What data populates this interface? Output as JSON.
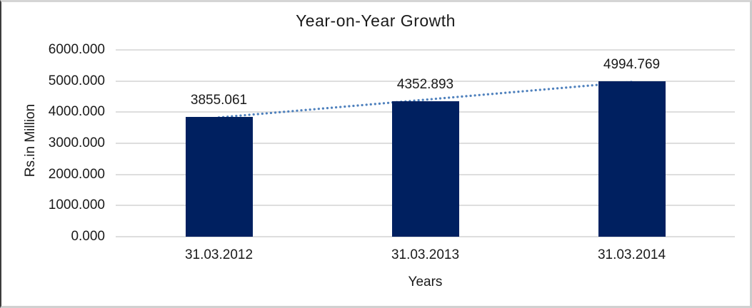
{
  "chart_data": {
    "type": "bar",
    "title": "Year-on-Year Growth",
    "xlabel": "Years",
    "ylabel": "Rs.in Million",
    "categories": [
      "31.03.2012",
      "31.03.2013",
      "31.03.2014"
    ],
    "values": [
      3855.061,
      4352.893,
      4994.769
    ],
    "data_labels": [
      "3855.061",
      "4352.893",
      "4994.769"
    ],
    "y_ticks": [
      "0.000",
      "1000.000",
      "2000.000",
      "3000.000",
      "4000.000",
      "5000.000",
      "6000.000"
    ],
    "ylim": [
      0,
      6000
    ],
    "grid": true,
    "legend": "none",
    "bar_color": "#002060",
    "gridline_color": "#dedede",
    "trendline": {
      "type": "linear",
      "style": "dotted",
      "color": "#4f81bd"
    }
  }
}
